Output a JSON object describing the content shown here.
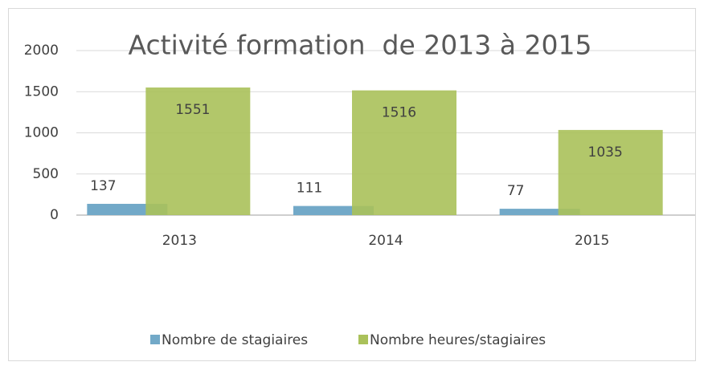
{
  "chart_data": {
    "type": "bar",
    "title": "Activité formation  de 2013 à 2015",
    "categories": [
      "2013",
      "2014",
      "2015"
    ],
    "series": [
      {
        "name": "Nombre de stagiaires",
        "color": "#72a9c8",
        "values": [
          137,
          111,
          77
        ]
      },
      {
        "name": "Nombre heures/stagiaires",
        "color": "#aac15a",
        "values": [
          1551,
          1516,
          1035
        ]
      }
    ],
    "ylim": [
      0,
      2000
    ],
    "yticks": [
      0,
      500,
      1000,
      1500,
      2000
    ],
    "grid": true,
    "legend": "bottom"
  }
}
